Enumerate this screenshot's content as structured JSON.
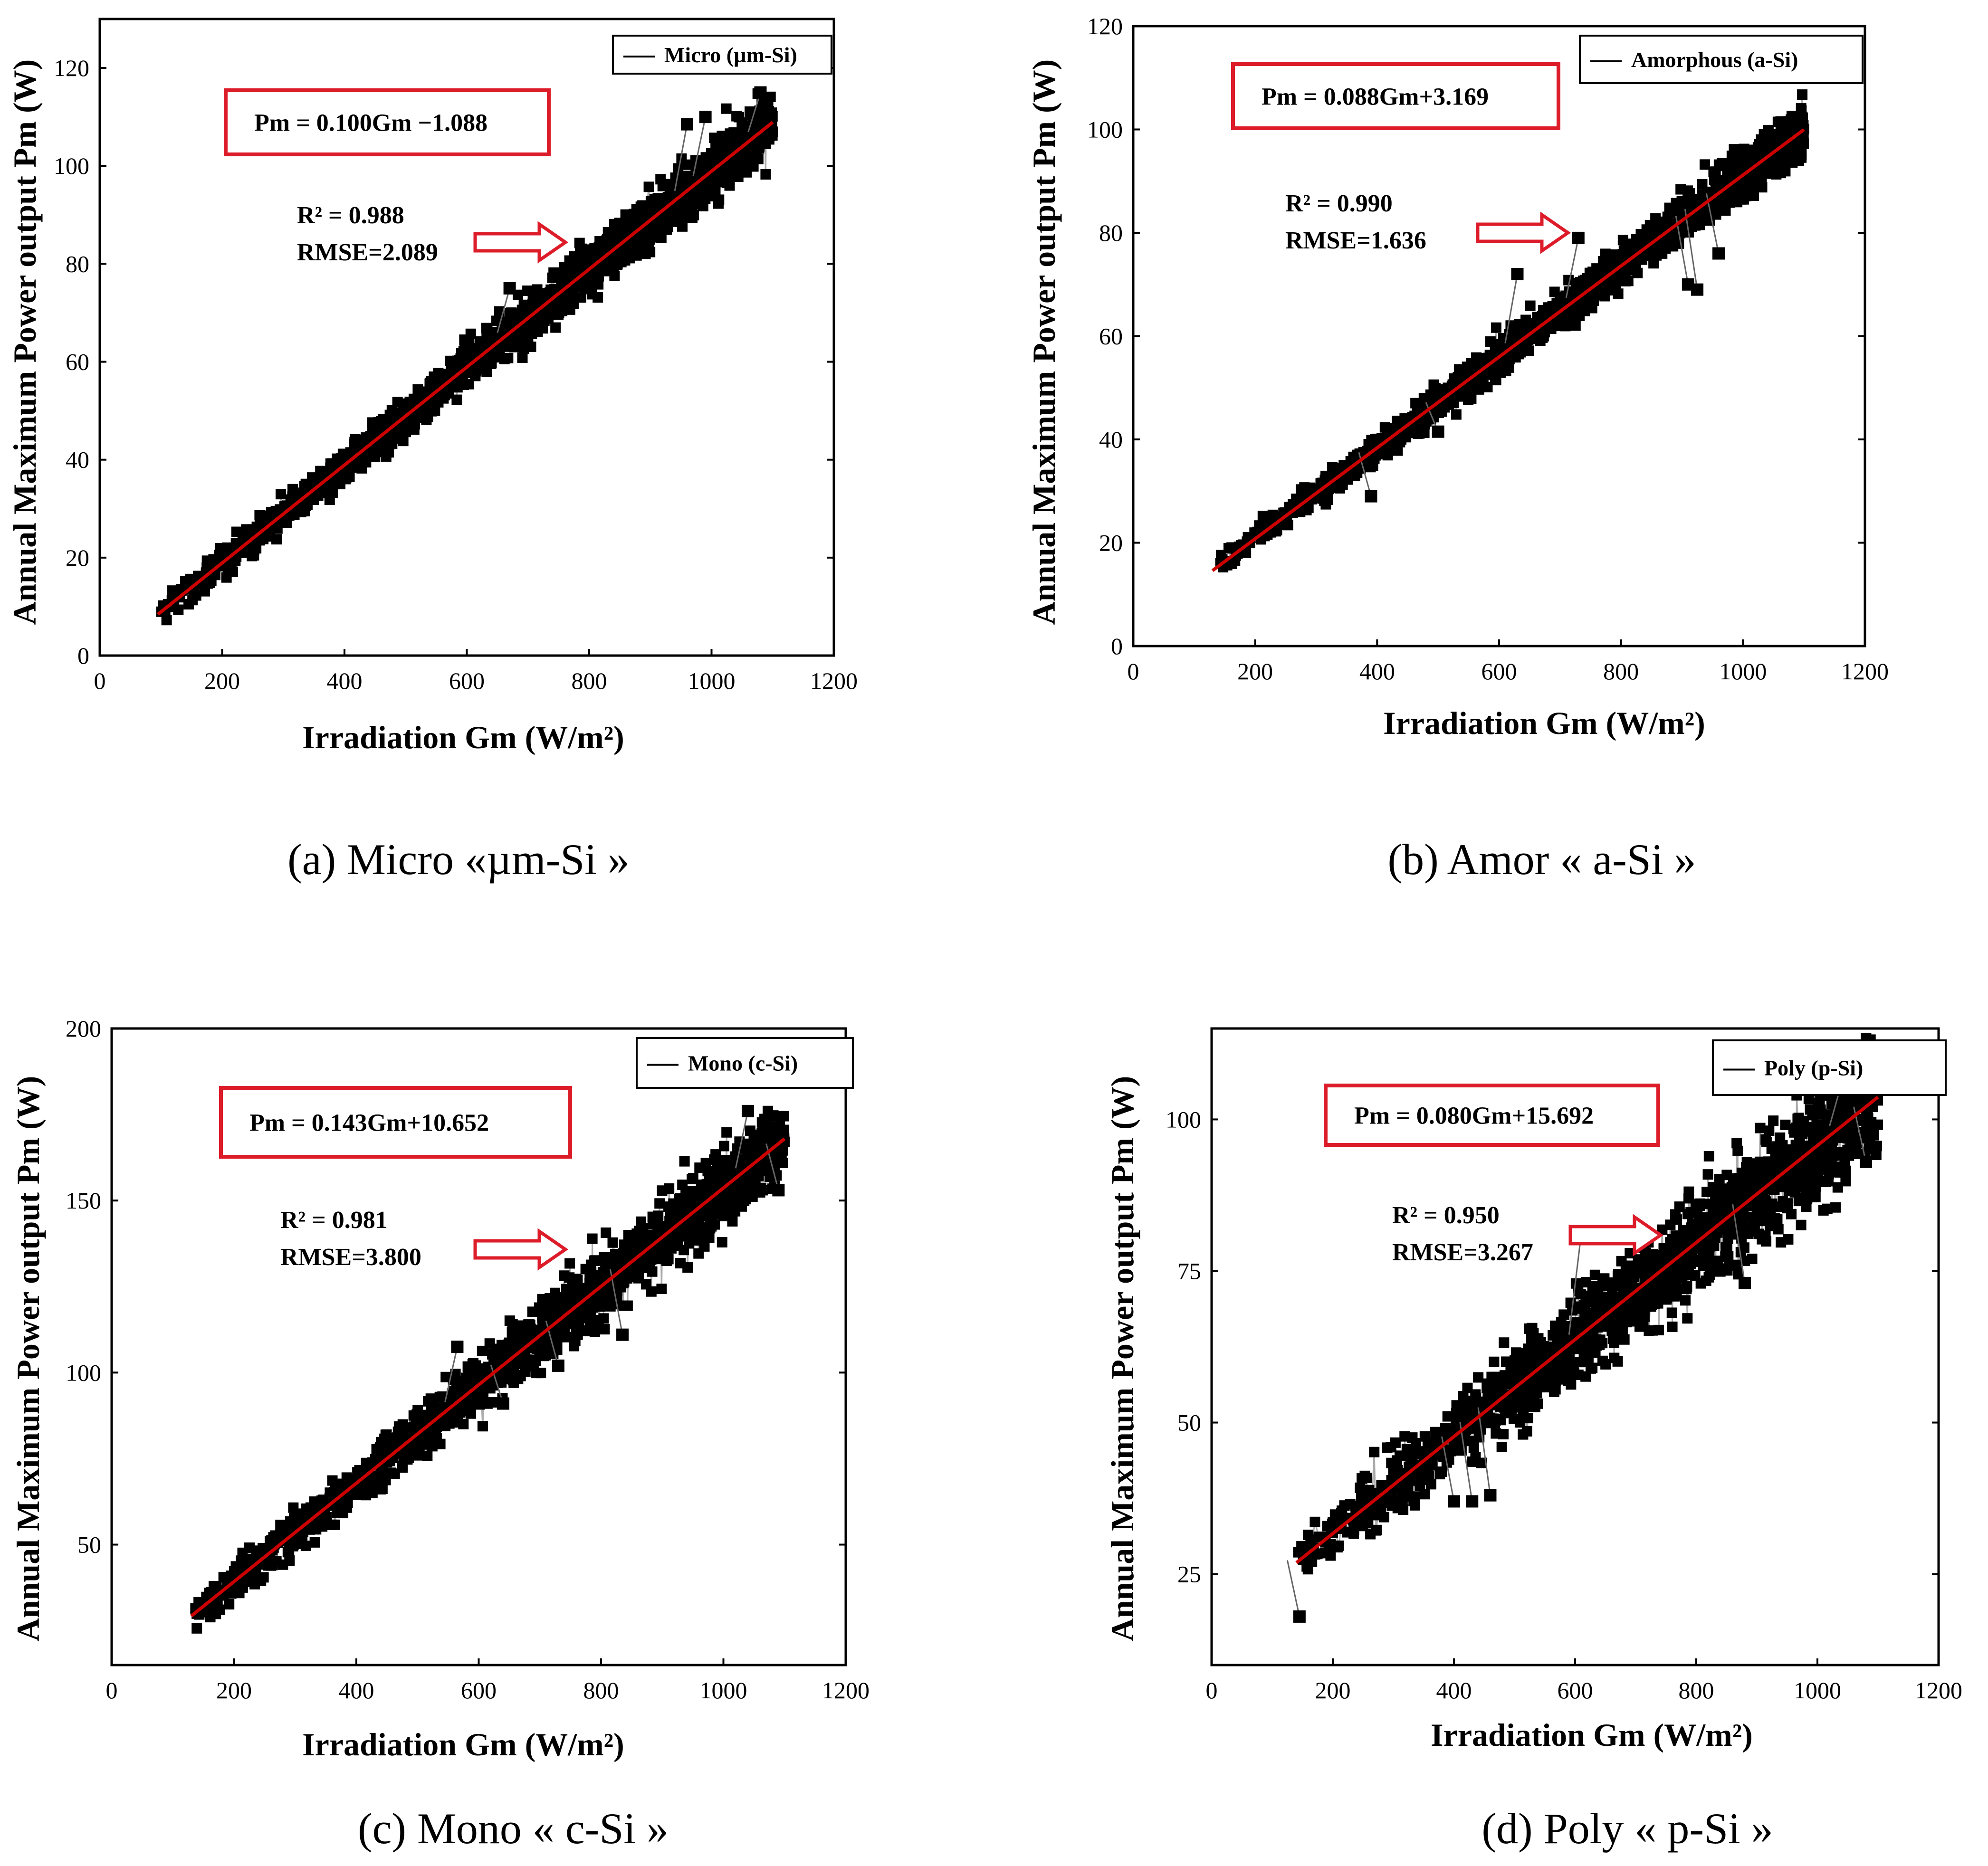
{
  "colors": {
    "axis": "#000000",
    "fit_line": "#cc0000",
    "equation_box": "#dd1c2a",
    "arrow": "#dd1c2a",
    "points": "#000000",
    "background": "#ffffff"
  },
  "chart_data": [
    {
      "type": "scatter",
      "panel_id": "a",
      "caption": "(a) Micro «µm-Si »",
      "xlabel": "Irradiation Gm (W/m²)",
      "ylabel": "Annual Maximum Power output Pm (W)",
      "xlim": [
        0,
        1200
      ],
      "ylim": [
        0,
        130
      ],
      "xticks": [
        0,
        200,
        400,
        600,
        800,
        1000,
        1200
      ],
      "yticks": [
        0,
        20,
        40,
        60,
        80,
        100,
        120
      ],
      "legend": {
        "label": "Micro (µm-Si)",
        "position": "top-right"
      },
      "equation": "Pm = 0.100Gm −1.088",
      "r2_text": "R² = 0.988",
      "rmse_text": "RMSE=2.089",
      "fit": {
        "slope": 0.1,
        "intercept": -1.088,
        "x_range": [
          95,
          1100
        ]
      },
      "scatter": {
        "x_range": [
          95,
          1100
        ],
        "spread": 2.1
      },
      "outliers": [
        [
          960,
          108.5
        ],
        [
          670,
          75
        ],
        [
          990,
          110
        ],
        [
          1080,
          115
        ]
      ],
      "grid": false
    },
    {
      "type": "scatter",
      "panel_id": "b",
      "caption": "(b) Amor « a-Si »",
      "xlabel": "Irradiation Gm (W/m²)",
      "ylabel": "Annual Maximum Power output Pm (W)",
      "xlim": [
        0,
        1200
      ],
      "ylim": [
        0,
        120
      ],
      "xticks": [
        0,
        200,
        400,
        600,
        800,
        1000,
        1200
      ],
      "yticks": [
        0,
        20,
        40,
        60,
        80,
        100,
        120
      ],
      "legend": {
        "label": "Amorphous (a-Si)",
        "position": "top-right"
      },
      "equation": "Pm = 0.088Gm+3.169",
      "r2_text": "R² = 0.990",
      "rmse_text": "RMSE=1.636",
      "fit": {
        "slope": 0.088,
        "intercept": 3.169,
        "x_range": [
          130,
          1100
        ]
      },
      "scatter": {
        "x_range": [
          130,
          1100
        ],
        "spread": 1.6
      },
      "outliers": [
        [
          630,
          72
        ],
        [
          730,
          79
        ],
        [
          910,
          70
        ],
        [
          925,
          69
        ],
        [
          960,
          76
        ],
        [
          390,
          29
        ],
        [
          500,
          41.5
        ]
      ],
      "grid": false
    },
    {
      "type": "scatter",
      "panel_id": "c",
      "caption": "(c) Mono « c-Si »",
      "xlabel": "Irradiation Gm (W/m²)",
      "ylabel": "Annual Maximum Power output Pm (W)",
      "xlim": [
        0,
        1200
      ],
      "ylim": [
        15,
        200
      ],
      "xticks": [
        0,
        200,
        400,
        600,
        800,
        1000,
        1200
      ],
      "yticks": [
        50,
        100,
        150,
        200
      ],
      "legend": {
        "label": "Mono (c-Si)",
        "position": "top-right"
      },
      "equation": "Pm = 0.143Gm+10.652",
      "r2_text": "R² = 0.981",
      "rmse_text": "RMSE=3.800",
      "fit": {
        "slope": 0.143,
        "intercept": 10.652,
        "x_range": [
          130,
          1100
        ]
      },
      "scatter": {
        "x_range": [
          130,
          1100
        ],
        "spread": 3.8
      },
      "outliers": [
        [
          565,
          107.5
        ],
        [
          730,
          102
        ],
        [
          640,
          91
        ],
        [
          835,
          111
        ],
        [
          1040,
          176
        ],
        [
          1090,
          153
        ]
      ],
      "grid": false
    },
    {
      "type": "scatter",
      "panel_id": "d",
      "caption": "(d) Poly « p-Si »",
      "xlabel": "Irradiation Gm (W/m²)",
      "ylabel": "Annual Maximum Power output Pm (W)",
      "xlim": [
        0,
        1200
      ],
      "ylim": [
        10,
        115
      ],
      "xticks": [
        0,
        200,
        400,
        600,
        800,
        1000,
        1200
      ],
      "yticks": [
        25,
        50,
        75,
        100
      ],
      "legend": {
        "label": "Poly (p-Si)",
        "position": "top-right"
      },
      "equation": "Pm = 0.080Gm+15.692",
      "r2_text": "R² = 0.950",
      "rmse_text": "RMSE=3.267",
      "fit": {
        "slope": 0.08,
        "intercept": 15.692,
        "x_range": [
          140,
          1100
        ]
      },
      "scatter": {
        "x_range": [
          140,
          1100
        ],
        "spread": 3.3
      },
      "outliers": [
        [
          145,
          18
        ],
        [
          400,
          37
        ],
        [
          430,
          37
        ],
        [
          460,
          38
        ],
        [
          610,
          81
        ],
        [
          880,
          73
        ],
        [
          1080,
          93
        ],
        [
          1040,
          106
        ]
      ],
      "grid": false
    }
  ]
}
